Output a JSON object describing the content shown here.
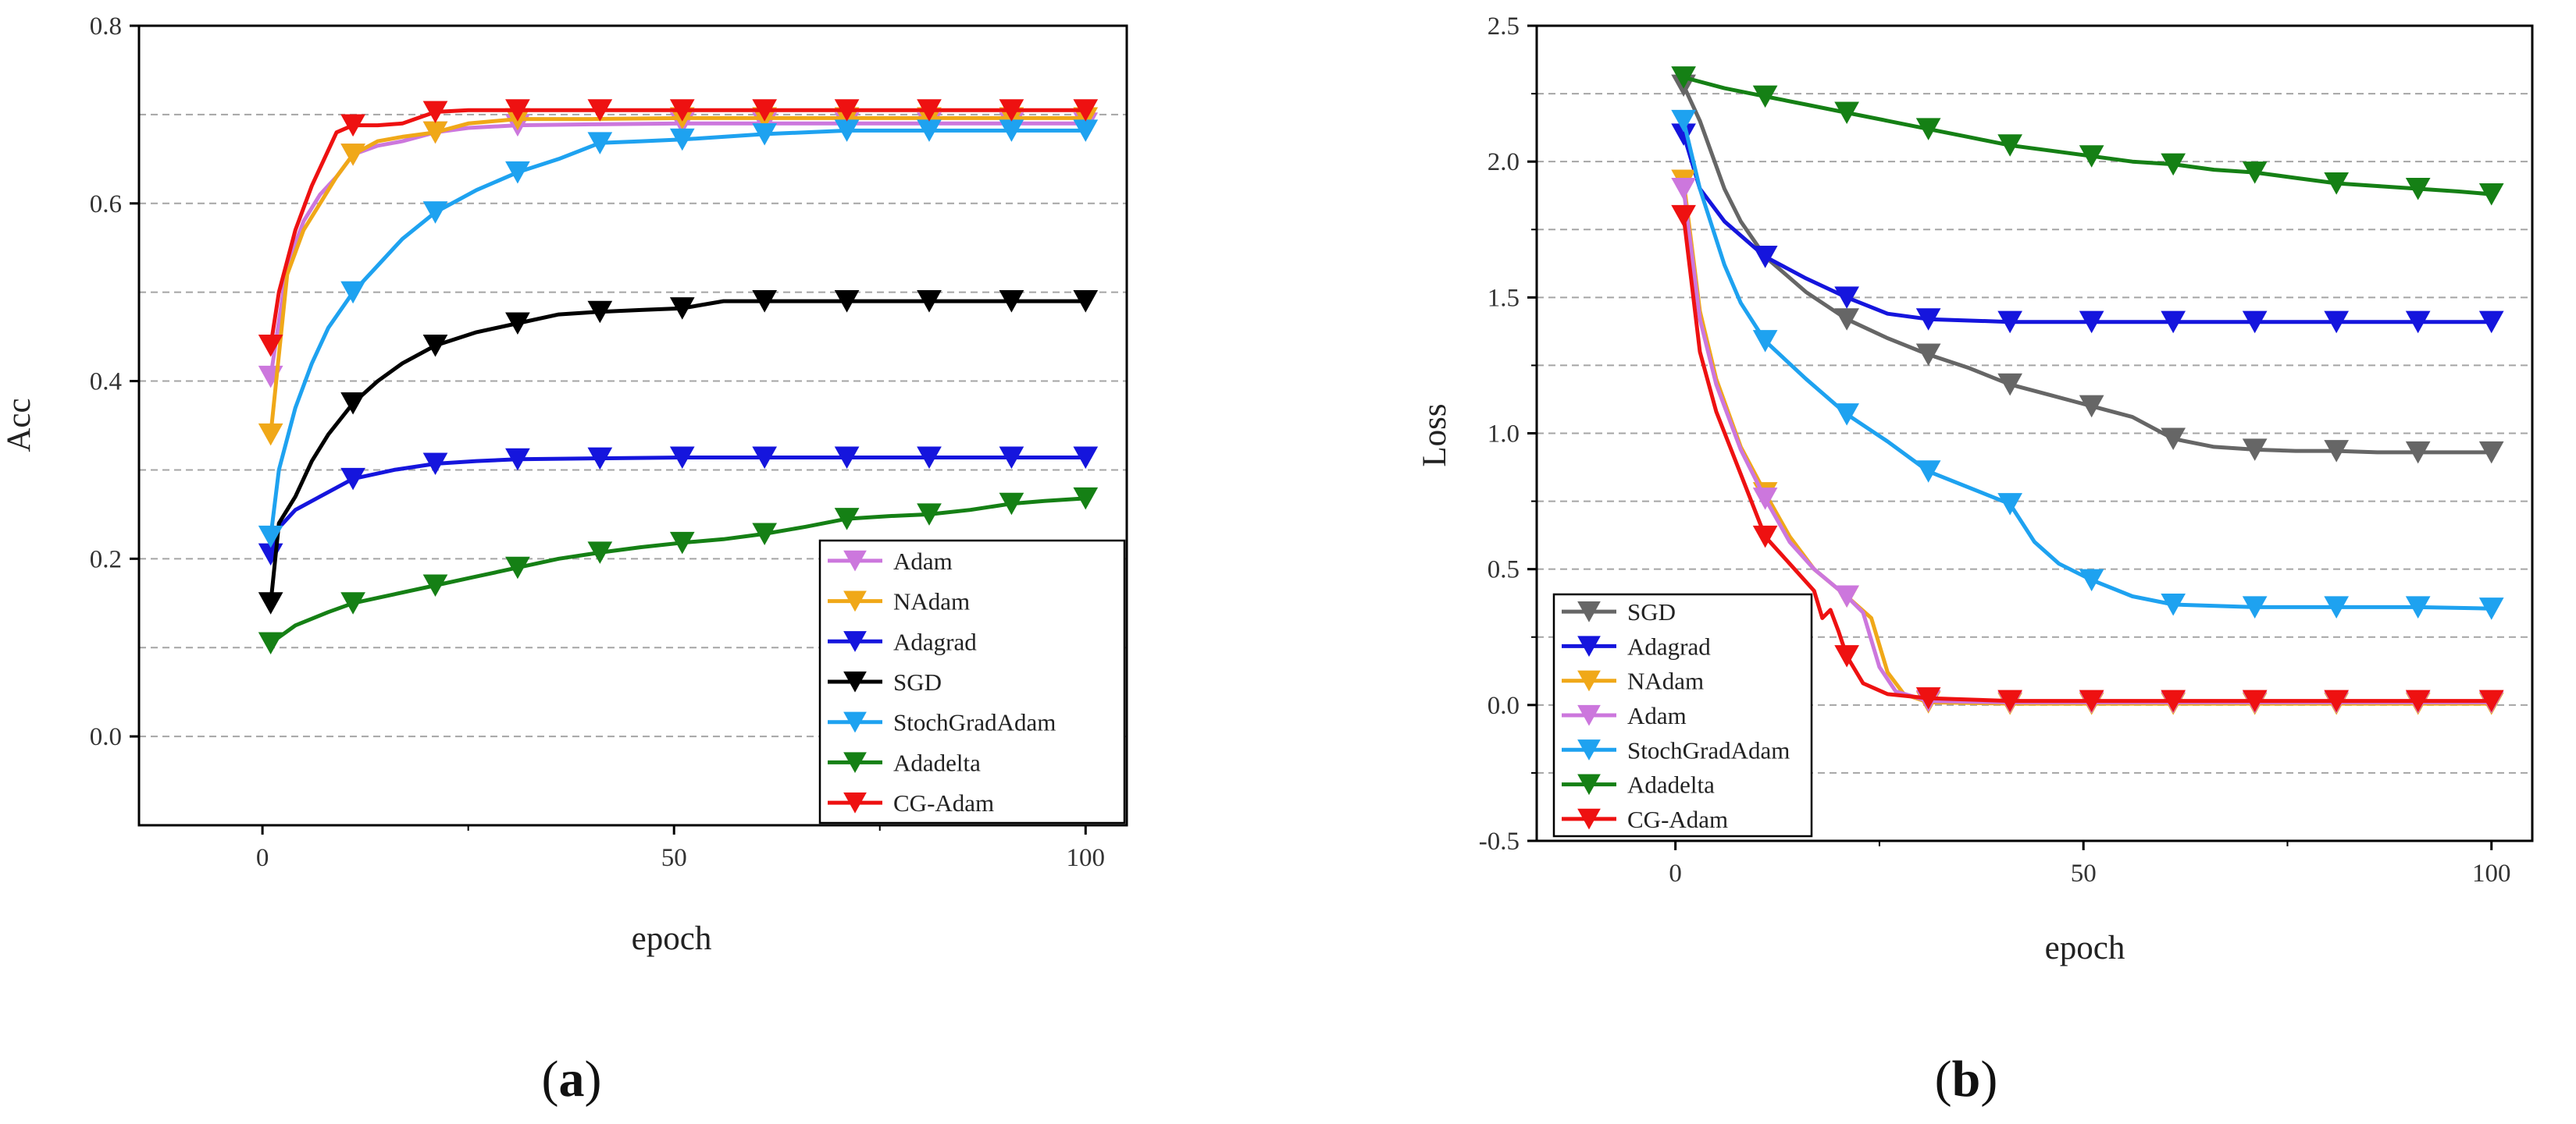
{
  "colors": {
    "Adam": "#cc77dd",
    "NAdam": "#f0a818",
    "Adagrad": "#1515dd",
    "SGD": "#000000",
    "SGD_loss": "#666666",
    "StochGradAdam": "#1ea2f0",
    "Adadelta": "#158015",
    "CG-Adam": "#ee1111",
    "grid": "#888888"
  },
  "chart_data": [
    {
      "type": "line",
      "panel": "a",
      "label_open": "(",
      "label_letter": "a",
      "label_close": ")",
      "title": "",
      "xlabel": "epoch",
      "ylabel": "Acc",
      "xlim": [
        -15,
        105
      ],
      "ylim": [
        -0.1,
        0.8
      ],
      "xticks": [
        "0",
        "50",
        "100"
      ],
      "xtick_values": [
        0,
        50,
        100
      ],
      "yticks": [
        "0.0",
        "0.2",
        "0.4",
        "0.6",
        "0.8"
      ],
      "ytick_values": [
        0.0,
        0.2,
        0.4,
        0.6,
        0.8
      ],
      "grid": "horizontal dashed",
      "legend_position": "bottom-right",
      "legend_order": [
        "Adam",
        "NAdam",
        "Adagrad",
        "SGD",
        "StochGradAdam",
        "Adadelta",
        "CG-Adam"
      ],
      "series": [
        {
          "name": "Adam",
          "x": [
            1,
            3,
            5,
            7,
            9,
            11,
            14,
            17,
            21,
            25,
            31,
            40,
            51,
            61,
            71,
            81,
            91,
            100
          ],
          "y": [
            0.405,
            0.53,
            0.58,
            0.61,
            0.63,
            0.655,
            0.665,
            0.67,
            0.68,
            0.685,
            0.688,
            0.689,
            0.69,
            0.69,
            0.69,
            0.69,
            0.69,
            0.69
          ]
        },
        {
          "name": "NAdam",
          "x": [
            1,
            3,
            5,
            7,
            9,
            11,
            14,
            17,
            21,
            25,
            31,
            40,
            51,
            61,
            71,
            81,
            91,
            100
          ],
          "y": [
            0.34,
            0.52,
            0.57,
            0.6,
            0.63,
            0.655,
            0.67,
            0.675,
            0.68,
            0.69,
            0.695,
            0.695,
            0.696,
            0.696,
            0.696,
            0.696,
            0.696,
            0.696
          ]
        },
        {
          "name": "Adagrad",
          "x": [
            1,
            2,
            4,
            7,
            11,
            16,
            21,
            26,
            31,
            41,
            51,
            61,
            71,
            81,
            91,
            100
          ],
          "y": [
            0.205,
            0.235,
            0.255,
            0.27,
            0.29,
            0.3,
            0.307,
            0.31,
            0.312,
            0.313,
            0.314,
            0.314,
            0.314,
            0.314,
            0.314,
            0.314
          ]
        },
        {
          "name": "SGD",
          "x": [
            1,
            2,
            4,
            6,
            8,
            11,
            14,
            17,
            21,
            26,
            31,
            36,
            41,
            46,
            51,
            56,
            61,
            71,
            81,
            91,
            100
          ],
          "y": [
            0.15,
            0.24,
            0.27,
            0.31,
            0.34,
            0.375,
            0.4,
            0.42,
            0.44,
            0.455,
            0.465,
            0.475,
            0.478,
            0.48,
            0.482,
            0.49,
            0.49,
            0.49,
            0.49,
            0.49,
            0.49
          ]
        },
        {
          "name": "StochGradAdam",
          "x": [
            1,
            2,
            4,
            6,
            8,
            11,
            14,
            17,
            21,
            26,
            31,
            36,
            41,
            46,
            51,
            56,
            61,
            71,
            81,
            91,
            100
          ],
          "y": [
            0.225,
            0.3,
            0.37,
            0.42,
            0.46,
            0.5,
            0.53,
            0.56,
            0.59,
            0.615,
            0.635,
            0.65,
            0.668,
            0.67,
            0.672,
            0.675,
            0.678,
            0.682,
            0.682,
            0.682,
            0.682
          ]
        },
        {
          "name": "Adadelta",
          "x": [
            1,
            4,
            8,
            11,
            16,
            21,
            26,
            31,
            36,
            41,
            46,
            51,
            56,
            61,
            66,
            71,
            76,
            81,
            86,
            91,
            95,
            100
          ],
          "y": [
            0.105,
            0.125,
            0.14,
            0.15,
            0.16,
            0.17,
            0.18,
            0.19,
            0.2,
            0.207,
            0.213,
            0.218,
            0.222,
            0.228,
            0.236,
            0.245,
            0.248,
            0.25,
            0.255,
            0.262,
            0.265,
            0.268
          ]
        },
        {
          "name": "CG-Adam",
          "x": [
            1,
            2,
            4,
            6,
            8,
            9,
            11,
            14,
            17,
            21,
            25,
            31,
            41,
            51,
            61,
            71,
            81,
            91,
            100
          ],
          "y": [
            0.44,
            0.5,
            0.57,
            0.62,
            0.66,
            0.68,
            0.688,
            0.688,
            0.69,
            0.703,
            0.705,
            0.705,
            0.705,
            0.705,
            0.705,
            0.705,
            0.705,
            0.705,
            0.705
          ]
        }
      ]
    },
    {
      "type": "line",
      "panel": "b",
      "label_open": "(",
      "label_letter": "b",
      "label_close": ")",
      "title": "",
      "xlabel": "epoch",
      "ylabel": "Loss",
      "xlim": [
        -17,
        105
      ],
      "ylim": [
        -0.5,
        2.5
      ],
      "xticks": [
        "0",
        "50",
        "100"
      ],
      "xtick_values": [
        0,
        50,
        100
      ],
      "yticks": [
        "-0.5",
        "0.0",
        "0.5",
        "1.0",
        "1.5",
        "2.0",
        "2.5"
      ],
      "ytick_values": [
        -0.5,
        0.0,
        0.5,
        1.0,
        1.5,
        2.0,
        2.5
      ],
      "grid": "horizontal dashed",
      "legend_position": "bottom-left",
      "legend_order": [
        "SGD",
        "Adagrad",
        "NAdam",
        "Adam",
        "StochGradAdam",
        "Adadelta",
        "CG-Adam"
      ],
      "series": [
        {
          "name": "SGD",
          "x": [
            1,
            3,
            6,
            8,
            11,
            16,
            21,
            26,
            31,
            36,
            41,
            46,
            51,
            56,
            61,
            66,
            71,
            76,
            81,
            86,
            91,
            96,
            100
          ],
          "y": [
            2.28,
            2.15,
            1.9,
            1.78,
            1.65,
            1.52,
            1.42,
            1.35,
            1.29,
            1.24,
            1.18,
            1.14,
            1.1,
            1.06,
            0.98,
            0.95,
            0.94,
            0.935,
            0.935,
            0.93,
            0.93,
            0.93,
            0.93
          ]
        },
        {
          "name": "Adagrad",
          "x": [
            1,
            3,
            6,
            11,
            16,
            21,
            26,
            31,
            41,
            51,
            61,
            71,
            81,
            91,
            100
          ],
          "y": [
            2.1,
            1.9,
            1.78,
            1.65,
            1.57,
            1.5,
            1.44,
            1.42,
            1.41,
            1.41,
            1.41,
            1.41,
            1.41,
            1.41,
            1.41
          ]
        },
        {
          "name": "NAdam",
          "x": [
            1,
            3,
            5,
            8,
            11,
            14,
            17,
            21,
            24,
            26,
            28,
            31,
            41,
            51,
            61,
            71,
            81,
            91,
            100
          ],
          "y": [
            1.93,
            1.45,
            1.2,
            0.95,
            0.78,
            0.62,
            0.5,
            0.4,
            0.32,
            0.12,
            0.04,
            0.01,
            0.005,
            0.005,
            0.005,
            0.005,
            0.005,
            0.005,
            0.005
          ]
        },
        {
          "name": "Adam",
          "x": [
            1,
            3,
            5,
            8,
            11,
            14,
            17,
            21,
            23,
            25,
            27,
            31,
            41,
            51,
            61,
            71,
            81,
            91,
            100
          ],
          "y": [
            1.9,
            1.42,
            1.18,
            0.94,
            0.76,
            0.6,
            0.5,
            0.4,
            0.34,
            0.14,
            0.05,
            0.015,
            0.01,
            0.01,
            0.01,
            0.01,
            0.01,
            0.01,
            0.01
          ]
        },
        {
          "name": "StochGradAdam",
          "x": [
            1,
            3,
            6,
            8,
            11,
            16,
            21,
            26,
            31,
            36,
            41,
            44,
            47,
            51,
            56,
            61,
            71,
            81,
            91,
            100
          ],
          "y": [
            2.15,
            1.9,
            1.62,
            1.48,
            1.34,
            1.2,
            1.07,
            0.97,
            0.86,
            0.8,
            0.74,
            0.6,
            0.52,
            0.46,
            0.4,
            0.37,
            0.36,
            0.36,
            0.36,
            0.355
          ]
        },
        {
          "name": "Adadelta",
          "x": [
            1,
            6,
            11,
            16,
            21,
            26,
            31,
            36,
            41,
            46,
            51,
            56,
            61,
            66,
            71,
            76,
            81,
            86,
            91,
            96,
            100
          ],
          "y": [
            2.31,
            2.27,
            2.24,
            2.21,
            2.18,
            2.15,
            2.12,
            2.09,
            2.06,
            2.04,
            2.02,
            2.0,
            1.99,
            1.97,
            1.96,
            1.94,
            1.92,
            1.91,
            1.9,
            1.89,
            1.88
          ]
        },
        {
          "name": "CG-Adam",
          "x": [
            1,
            3,
            5,
            8,
            11,
            14,
            17,
            18,
            19,
            20,
            21,
            23,
            26,
            31,
            41,
            51,
            61,
            71,
            81,
            91,
            100
          ],
          "y": [
            1.8,
            1.3,
            1.08,
            0.85,
            0.62,
            0.52,
            0.42,
            0.32,
            0.35,
            0.27,
            0.18,
            0.08,
            0.04,
            0.025,
            0.015,
            0.015,
            0.015,
            0.015,
            0.015,
            0.015,
            0.015
          ]
        }
      ]
    }
  ]
}
